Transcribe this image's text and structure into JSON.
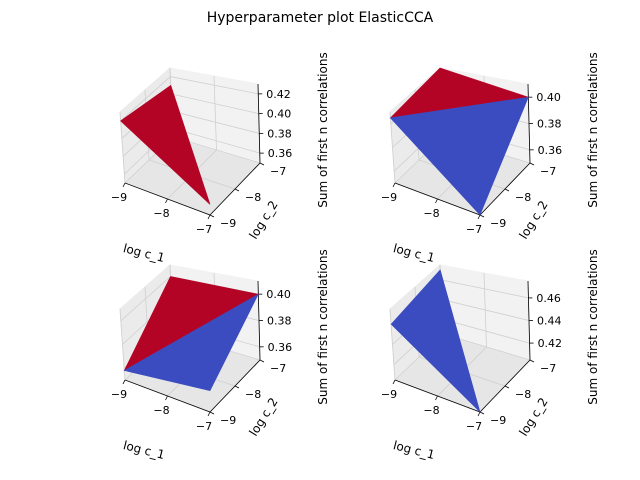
{
  "figure": {
    "title": "Hyperparameter plot ElasticCCA"
  },
  "colors": {
    "red": "#b40426",
    "blue": "#3b4cc0"
  },
  "chart_data": [
    {
      "type": "surface3d",
      "xlabel": "log c_1",
      "ylabel": "log c_2",
      "zlabel": "Sum of first n correlations",
      "xticks": [
        "−9",
        "−8",
        "−7"
      ],
      "yticks": [
        "−9",
        "−8",
        "−7"
      ],
      "zticks": [
        "0.36",
        "0.38",
        "0.40",
        "0.42"
      ],
      "xlim": [
        -9,
        -7
      ],
      "ylim": [
        -9,
        -7
      ],
      "zlim": [
        0.35,
        0.43
      ],
      "points": [
        {
          "x": -9,
          "y": -9,
          "z": 0.42
        },
        {
          "x": -7,
          "y": -9,
          "z": 0.36
        },
        {
          "x": -9,
          "y": -7,
          "z": 0.41
        }
      ],
      "facets": [
        {
          "color": "red",
          "vertices": [
            0,
            1,
            2
          ]
        }
      ]
    },
    {
      "type": "surface3d",
      "xlabel": "log c_1",
      "ylabel": "log c_2",
      "zlabel": "Sum of first n correlations",
      "xticks": [
        "−9",
        "−8",
        "−7"
      ],
      "yticks": [
        "−9",
        "−8",
        "−7"
      ],
      "zticks": [
        "0.36",
        "0.38",
        "0.40"
      ],
      "xlim": [
        -9,
        -7
      ],
      "ylim": [
        -9,
        -7
      ],
      "zlim": [
        0.35,
        0.41
      ],
      "points": [
        {
          "x": -9,
          "y": -9,
          "z": 0.405
        },
        {
          "x": -7,
          "y": -9,
          "z": 0.35
        },
        {
          "x": -7,
          "y": -7,
          "z": 0.4
        },
        {
          "x": -9,
          "y": -7,
          "z": 0.41
        }
      ],
      "facets": [
        {
          "color": "red",
          "vertices": [
            0,
            2,
            3
          ]
        },
        {
          "color": "blue",
          "vertices": [
            0,
            1,
            2
          ]
        }
      ]
    },
    {
      "type": "surface3d",
      "xlabel": "log c_1",
      "ylabel": "log c_2",
      "zlabel": "Sum of first n correlations",
      "xticks": [
        "−9",
        "−8",
        "−7"
      ],
      "yticks": [
        "−9",
        "−8",
        "−7"
      ],
      "zticks": [
        "0.36",
        "0.38",
        "0.40"
      ],
      "xlim": [
        -9,
        -7
      ],
      "ylim": [
        -9,
        -7
      ],
      "zlim": [
        0.35,
        0.41
      ],
      "points": [
        {
          "x": -9,
          "y": -9,
          "z": 0.358
        },
        {
          "x": -7,
          "y": -9,
          "z": 0.365
        },
        {
          "x": -7,
          "y": -7,
          "z": 0.4
        },
        {
          "x": -9,
          "y": -7,
          "z": 0.4
        }
      ],
      "facets": [
        {
          "color": "red",
          "vertices": [
            0,
            2,
            3
          ]
        },
        {
          "color": "blue",
          "vertices": [
            0,
            1,
            2
          ]
        }
      ]
    },
    {
      "type": "surface3d",
      "xlabel": "log c_1",
      "ylabel": "log c_2",
      "zlabel": "Sum of first n correlations",
      "xticks": [
        "−9",
        "−8",
        "−7"
      ],
      "yticks": [
        "−9",
        "−8",
        "−7"
      ],
      "zticks": [
        "0.42",
        "0.44",
        "0.46"
      ],
      "xlim": [
        -9,
        -7
      ],
      "ylim": [
        -9,
        -7
      ],
      "zlim": [
        0.405,
        0.475
      ],
      "points": [
        {
          "x": -9,
          "y": -9,
          "z": 0.46
        },
        {
          "x": -7,
          "y": -9,
          "z": 0.405
        },
        {
          "x": -9,
          "y": -7,
          "z": 0.47
        }
      ],
      "facets": [
        {
          "color": "blue",
          "vertices": [
            0,
            1,
            2
          ]
        }
      ]
    }
  ]
}
